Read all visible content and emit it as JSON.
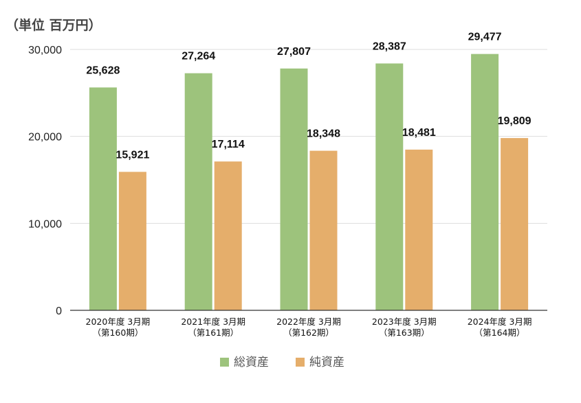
{
  "unit_label": "（単位 百万円）",
  "colors": {
    "total": "#9dc37c",
    "net": "#e5ae6b",
    "grid": "#dddddd",
    "axis": "#333333"
  },
  "chart_data": {
    "type": "bar",
    "categories": [
      [
        "2020年度 3月期",
        "（第160期）"
      ],
      [
        "2021年度 3月期",
        "（第161期）"
      ],
      [
        "2022年度 3月期",
        "（第162期）"
      ],
      [
        "2023年度 3月期",
        "（第163期）"
      ],
      [
        "2024年度 3月期",
        "（第164期）"
      ]
    ],
    "series": [
      {
        "name": "総資産",
        "values": [
          25628,
          27264,
          27807,
          28387,
          29477
        ],
        "labels": [
          "25,628",
          "27,264",
          "27,807",
          "28,387",
          "29,477"
        ]
      },
      {
        "name": "純資産",
        "values": [
          15921,
          17114,
          18348,
          18481,
          19809
        ],
        "labels": [
          "15,921",
          "17,114",
          "18,348",
          "18,481",
          "19,809"
        ]
      }
    ],
    "ylim": [
      0,
      30000
    ],
    "yticks": [
      0,
      10000,
      20000,
      30000
    ],
    "ytick_labels": [
      "0",
      "10,000",
      "20,000",
      "30,000"
    ],
    "grid": true,
    "legend_position": "bottom"
  }
}
